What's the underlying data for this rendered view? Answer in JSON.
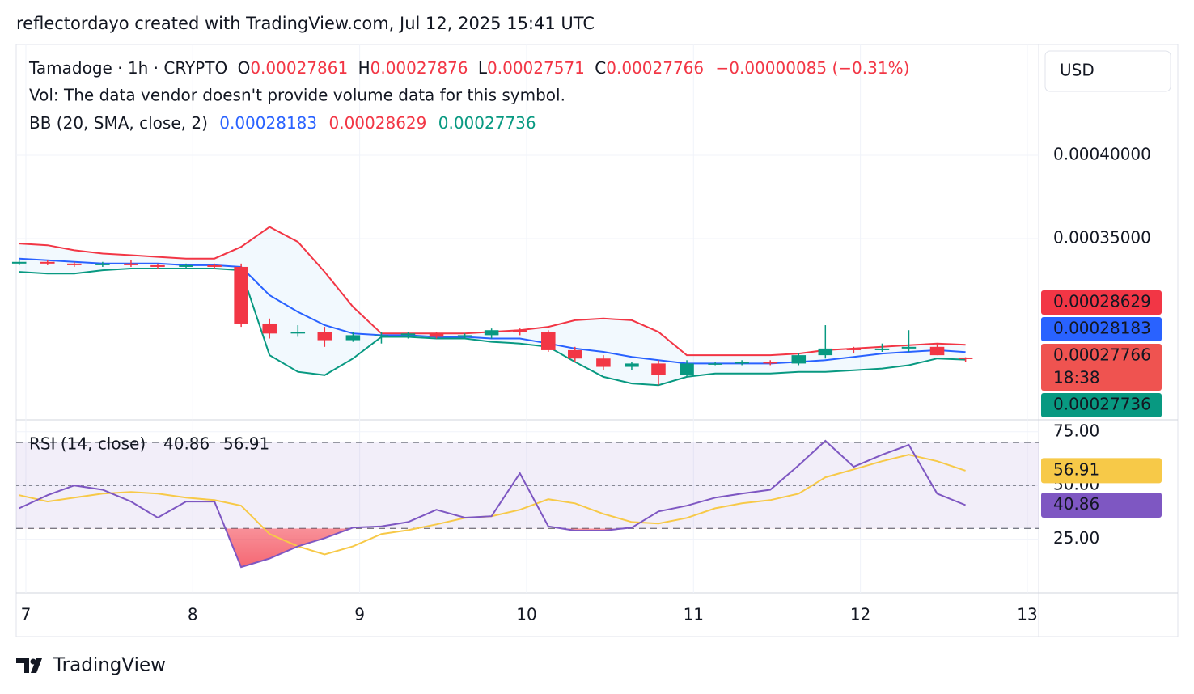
{
  "header": {
    "attribution": "reflectordayo created with TradingView.com, Jul 12, 2025 15:41 UTC"
  },
  "legend": {
    "symbol": "Tamadoge · 1h · CRYPTO",
    "ohlc": [
      {
        "key": "O",
        "value": "0.00027861"
      },
      {
        "key": "H",
        "value": "0.00027876"
      },
      {
        "key": "L",
        "value": "0.00027571"
      },
      {
        "key": "C",
        "value": "0.00027766"
      }
    ],
    "change": "−0.00000085 (−0.31%)",
    "vol": "Vol: The data vendor doesn't provide volume data for this symbol.",
    "bb": {
      "label": "BB (20, SMA, close, 2)",
      "values": [
        "0.00028183",
        "0.00028629",
        "0.00027736"
      ]
    },
    "rsi": {
      "label": "RSI (14, close)",
      "values": [
        "40.86",
        "56.91"
      ]
    }
  },
  "currency": "USD",
  "countdown": "18:38",
  "footer": {
    "brand": "TradingView"
  },
  "chart_data": [
    {
      "type": "candlestick",
      "up_color": "#089981",
      "down_color": "#f23645",
      "grid": true,
      "x": [
        6.96,
        7.13,
        7.29,
        7.46,
        7.63,
        7.79,
        7.96,
        8.13,
        8.29,
        8.46,
        8.63,
        8.79,
        8.96,
        9.13,
        9.29,
        9.46,
        9.63,
        9.79,
        9.96,
        10.13,
        10.29,
        10.46,
        10.63,
        10.79,
        10.96,
        11.13,
        11.29,
        11.46,
        11.63,
        11.79,
        11.96,
        12.13,
        12.29,
        12.46,
        12.63
      ],
      "open": [
        0.000335,
        0.000336,
        0.000335,
        0.000334,
        0.000335,
        0.000334,
        0.000333,
        0.000334,
        0.000333,
        0.000299,
        0.000293,
        0.000294,
        0.000289,
        0.000292,
        0.000292,
        0.000293,
        0.000291,
        0.000292,
        0.000295,
        0.000294,
        0.000283,
        0.000278,
        0.000273,
        0.000275,
        0.000268,
        0.000275,
        0.000275,
        0.000276,
        0.000275,
        0.00028,
        0.000284,
        0.000283,
        0.000284,
        0.000285,
        0.00027861
      ],
      "high": [
        0.000337,
        0.000337,
        0.000336,
        0.000336,
        0.000337,
        0.000335,
        0.000335,
        0.000335,
        0.000335,
        0.000302,
        0.000298,
        0.000297,
        0.000294,
        0.000294,
        0.000294,
        0.000294,
        0.000293,
        0.000296,
        0.000296,
        0.000295,
        0.000285,
        0.00028,
        0.000276,
        0.000277,
        0.000277,
        0.000276,
        0.000277,
        0.000277,
        0.000281,
        0.000298,
        0.000285,
        0.000287,
        0.000295,
        0.000287,
        0.00027876
      ],
      "low": [
        0.000334,
        0.000334,
        0.000333,
        0.000333,
        0.000333,
        0.000332,
        0.000332,
        0.000332,
        0.000297,
        0.00029,
        0.000291,
        0.000285,
        0.000288,
        0.000287,
        0.00029,
        0.00029,
        0.00029,
        0.00029,
        0.000292,
        0.000282,
        0.000276,
        0.000271,
        0.000271,
        0.000262,
        0.000267,
        0.000274,
        0.000274,
        0.000274,
        0.000274,
        0.000278,
        0.000281,
        0.000282,
        0.000282,
        0.00028,
        0.00027571
      ],
      "close": [
        0.000336,
        0.000335,
        0.000334,
        0.000335,
        0.000334,
        0.000333,
        0.000334,
        0.000333,
        0.000299,
        0.000293,
        0.000294,
        0.000289,
        0.000292,
        0.000292,
        0.000293,
        0.000291,
        0.000292,
        0.000295,
        0.000294,
        0.000283,
        0.000278,
        0.000273,
        0.000275,
        0.000268,
        0.000275,
        0.000275,
        0.000276,
        0.000275,
        0.00028,
        0.000284,
        0.000283,
        0.000284,
        0.000285,
        0.00028,
        0.00027766
      ],
      "close_label": "0.00027766",
      "series": [
        {
          "color": "#f23645",
          "last_label": "0.00028629",
          "values": [
            0.000347,
            0.000346,
            0.000343,
            0.000341,
            0.00034,
            0.000339,
            0.000338,
            0.000338,
            0.000345,
            0.000357,
            0.000348,
            0.00033,
            0.000309,
            0.000293,
            0.000293,
            0.000293,
            0.000293,
            0.000294,
            0.000295,
            0.000297,
            0.000301,
            0.000302,
            0.000301,
            0.000294,
            0.00028,
            0.00028,
            0.00028,
            0.00028,
            0.000281,
            0.000283,
            0.000284,
            0.000285,
            0.000286,
            0.000287,
            0.00028629
          ]
        },
        {
          "color": "#2962ff",
          "last_label": "0.00028183",
          "values": [
            0.000338,
            0.000337,
            0.000336,
            0.000335,
            0.000335,
            0.000335,
            0.000334,
            0.000334,
            0.000333,
            0.000316,
            0.000306,
            0.000298,
            0.000293,
            0.000292,
            0.000292,
            0.000291,
            0.000291,
            0.00029,
            0.00029,
            0.000287,
            0.000284,
            0.000282,
            0.000279,
            0.000277,
            0.000275,
            0.000275,
            0.000275,
            0.000275,
            0.000276,
            0.000277,
            0.000279,
            0.000281,
            0.000282,
            0.000283,
            0.00028183
          ]
        },
        {
          "color": "#089981",
          "last_label": "0.00027736",
          "values": [
            0.00033,
            0.000329,
            0.000329,
            0.000331,
            0.000332,
            0.000332,
            0.000332,
            0.000332,
            0.000331,
            0.00028,
            0.00027,
            0.000268,
            0.000278,
            0.000291,
            0.000291,
            0.00029,
            0.00029,
            0.000288,
            0.000287,
            0.000285,
            0.000276,
            0.000267,
            0.000263,
            0.000262,
            0.000267,
            0.000269,
            0.000269,
            0.000269,
            0.00027,
            0.00027,
            0.000271,
            0.000272,
            0.000274,
            0.000278,
            0.00027736
          ]
        }
      ],
      "xlim": [
        6.942,
        13.068
      ],
      "xticks": [
        7,
        8,
        9,
        10,
        11,
        12,
        13
      ],
      "ylim": [
        0.0002417,
        0.0004665
      ],
      "yticks": [
        {
          "value": 0.00035,
          "label": "0.00035000"
        },
        {
          "value": 0.0004,
          "label": "0.00040000"
        }
      ]
    },
    {
      "type": "line",
      "grid": true,
      "x": [
        6.96,
        7.13,
        7.29,
        7.46,
        7.63,
        7.79,
        7.96,
        8.13,
        8.29,
        8.46,
        8.63,
        8.79,
        8.96,
        9.13,
        9.29,
        9.46,
        9.63,
        9.79,
        9.96,
        10.13,
        10.29,
        10.46,
        10.63,
        10.79,
        10.96,
        11.13,
        11.29,
        11.46,
        11.63,
        11.79,
        11.96,
        12.13,
        12.29,
        12.46,
        12.63
      ],
      "series": [
        {
          "color": "#7e57c2",
          "last_label": "40.86",
          "values": [
            39.4,
            45.5,
            50,
            48,
            42.5,
            35,
            42.5,
            42.5,
            12,
            16,
            21.7,
            25.5,
            30.4,
            31,
            33,
            38.7,
            35,
            35.7,
            55.7,
            31,
            29,
            29,
            30.4,
            37.9,
            40.6,
            44.3,
            46.2,
            48,
            59.4,
            70.8,
            58.7,
            64.3,
            68.9,
            46.2,
            40.86
          ]
        },
        {
          "color": "#f7c948",
          "last_label": "56.91",
          "values": [
            45.5,
            42.5,
            44.3,
            46.2,
            47,
            46.2,
            44.3,
            43.2,
            40.6,
            27.4,
            21.7,
            17.9,
            21.7,
            27.4,
            29.2,
            31.9,
            34.9,
            35.7,
            38.7,
            43.6,
            41.7,
            36.8,
            33,
            32.3,
            34.9,
            39.4,
            41.7,
            43.2,
            46.2,
            53.8,
            57.5,
            61.3,
            64.3,
            61.3,
            56.91
          ]
        }
      ],
      "levels": [
        30,
        50,
        70
      ],
      "ylim": [
        0,
        80.2
      ],
      "yticks": [
        {
          "value": 25,
          "label": "25.00"
        },
        {
          "value": 50,
          "label": "50.00"
        },
        {
          "value": 75,
          "label": "75.00"
        }
      ]
    }
  ]
}
